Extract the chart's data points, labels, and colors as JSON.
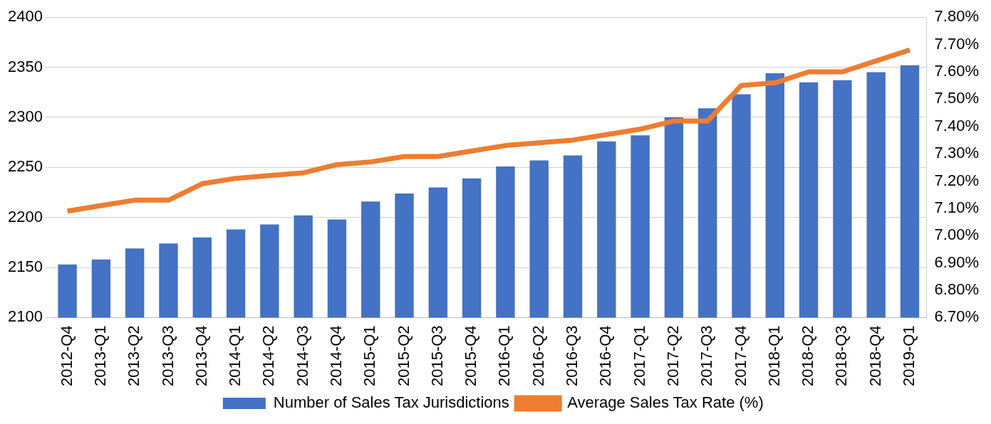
{
  "chart_data": {
    "type": "bar",
    "categories": [
      "2012-Q4",
      "2013-Q1",
      "2013-Q2",
      "2013-Q3",
      "2013-Q4",
      "2014-Q1",
      "2014-Q2",
      "2014-Q3",
      "2014-Q4",
      "2015-Q1",
      "2015-Q2",
      "2015-Q3",
      "2015-Q4",
      "2016-Q1",
      "2016-Q2",
      "2016-Q3",
      "2016-Q4",
      "2017-Q1",
      "2017-Q2",
      "2017-Q3",
      "2017-Q4",
      "2018-Q1",
      "2018-Q2",
      "2018-Q3",
      "2018-Q4",
      "2019-Q1"
    ],
    "series": [
      {
        "name": "Number of Sales Tax Jurisdictions",
        "color": "#4472c4",
        "values": [
          2153,
          2158,
          2169,
          2174,
          2180,
          2188,
          2193,
          2202,
          2198,
          2216,
          2224,
          2230,
          2239,
          2251,
          2257,
          2262,
          2276,
          2282,
          2300,
          2309,
          2323,
          2344,
          2335,
          2337,
          2345,
          2352
        ]
      },
      {
        "name": "Average Sales Tax Rate (%)",
        "type": "line",
        "axis": "y2",
        "color": "#ed7d31",
        "values": [
          7.09,
          7.11,
          7.13,
          7.13,
          7.19,
          7.21,
          7.22,
          7.23,
          7.26,
          7.27,
          7.29,
          7.29,
          7.31,
          7.33,
          7.34,
          7.35,
          7.37,
          7.39,
          7.42,
          7.42,
          7.55,
          7.56,
          7.6,
          7.6,
          7.64,
          7.68
        ]
      }
    ],
    "ylim": [
      2100,
      2400
    ],
    "yticks": [
      2100,
      2150,
      2200,
      2250,
      2300,
      2350,
      2400
    ],
    "y2lim": [
      6.7,
      7.8
    ],
    "y2ticks": [
      {
        "value": 6.7,
        "label": "6.70%"
      },
      {
        "value": 6.8,
        "label": "6.80%"
      },
      {
        "value": 6.9,
        "label": "6.90%"
      },
      {
        "value": 7.0,
        "label": "7.00%"
      },
      {
        "value": 7.1,
        "label": "7.10%"
      },
      {
        "value": 7.2,
        "label": "7.20%"
      },
      {
        "value": 7.3,
        "label": "7.30%"
      },
      {
        "value": 7.4,
        "label": "7.40%"
      },
      {
        "value": 7.5,
        "label": "7.50%"
      },
      {
        "value": 7.6,
        "label": "7.60%"
      },
      {
        "value": 7.7,
        "label": "7.70%"
      },
      {
        "value": 7.8,
        "label": "7.80%"
      }
    ],
    "grid": "y",
    "legend": "bottom",
    "marker": "none",
    "line_style": "solid"
  }
}
